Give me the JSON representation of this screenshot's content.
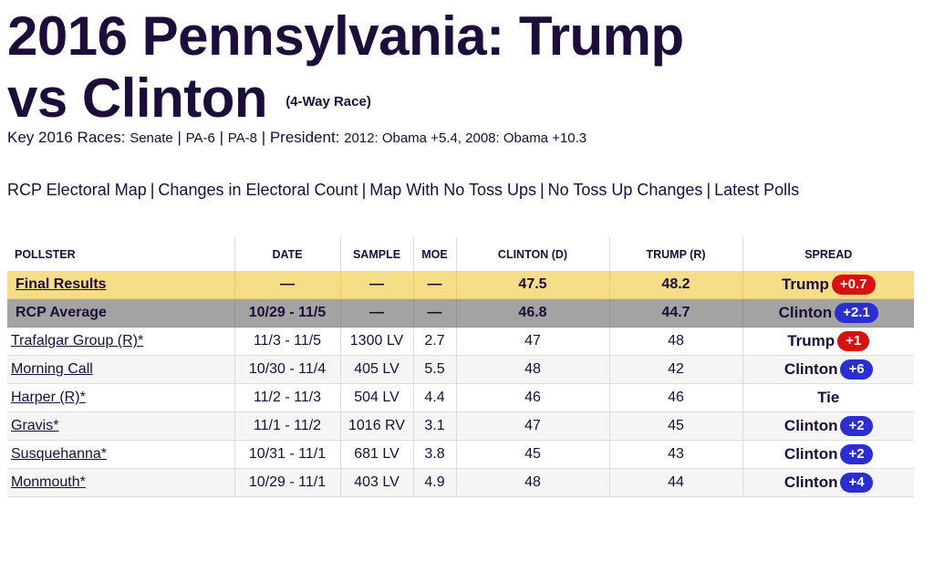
{
  "header": {
    "title": "2016 Pennsylvania: Trump vs Clinton",
    "title_line1": "2016 Pennsylvania: Trump",
    "title_line2": "vs Clinton",
    "subtitle": "(4-Way Race)"
  },
  "key_races": {
    "label": "Key 2016 Races:",
    "links": [
      "Senate",
      "PA-6",
      "PA-8"
    ],
    "president_label": "President:",
    "president_text": "2012: Obama +5.4, 2008: Obama +10.3"
  },
  "nav_links": [
    "RCP Electoral Map",
    "Changes in Electoral Count",
    "Map With No Toss Ups",
    "No Toss Up Changes",
    "Latest Polls"
  ],
  "table": {
    "columns": [
      "POLLSTER",
      "DATE",
      "SAMPLE",
      "MOE",
      "CLINTON (D)",
      "TRUMP (R)",
      "SPREAD"
    ],
    "rows": [
      {
        "type": "final",
        "pollster": "Final Results",
        "date": "—",
        "sample": "—",
        "moe": "—",
        "clinton": "47.5",
        "trump": "48.2",
        "spread_name": "Trump",
        "spread_value": "+0.7",
        "party": "rep"
      },
      {
        "type": "rcp",
        "pollster": "RCP Average",
        "date": "10/29 - 11/5",
        "sample": "—",
        "moe": "—",
        "clinton": "46.8",
        "trump": "44.7",
        "spread_name": "Clinton",
        "spread_value": "+2.1",
        "party": "dem"
      },
      {
        "type": "poll",
        "pollster": "Trafalgar Group (R)*",
        "date": "11/3 - 11/5",
        "sample": "1300 LV",
        "moe": "2.7",
        "clinton": "47",
        "trump": "48",
        "spread_name": "Trump",
        "spread_value": "+1",
        "party": "rep"
      },
      {
        "type": "poll",
        "pollster": "Morning Call",
        "date": "10/30 - 11/4",
        "sample": "405 LV",
        "moe": "5.5",
        "clinton": "48",
        "trump": "42",
        "spread_name": "Clinton",
        "spread_value": "+6",
        "party": "dem"
      },
      {
        "type": "poll",
        "pollster": "Harper (R)*",
        "date": "11/2 - 11/3",
        "sample": "504 LV",
        "moe": "4.4",
        "clinton": "46",
        "trump": "46",
        "spread_name": "Tie",
        "spread_value": "",
        "party": "tie"
      },
      {
        "type": "poll",
        "pollster": "Gravis*",
        "date": "11/1 - 11/2",
        "sample": "1016 RV",
        "moe": "3.1",
        "clinton": "47",
        "trump": "45",
        "spread_name": "Clinton",
        "spread_value": "+2",
        "party": "dem"
      },
      {
        "type": "poll",
        "pollster": "Susquehanna*",
        "date": "10/31 - 11/1",
        "sample": "681 LV",
        "moe": "3.8",
        "clinton": "45",
        "trump": "43",
        "spread_name": "Clinton",
        "spread_value": "+2",
        "party": "dem"
      },
      {
        "type": "poll",
        "pollster": "Monmouth*",
        "date": "10/29 - 11/1",
        "sample": "403 LV",
        "moe": "4.9",
        "clinton": "48",
        "trump": "44",
        "spread_name": "Clinton",
        "spread_value": "+4",
        "party": "dem"
      }
    ]
  },
  "colors": {
    "text": "#1c0d3a",
    "final_row_bg": "#f6dd88",
    "rcp_row_bg": "#a3a3a3",
    "rep_badge": "#d81010",
    "dem_badge": "#2b2fd1"
  }
}
